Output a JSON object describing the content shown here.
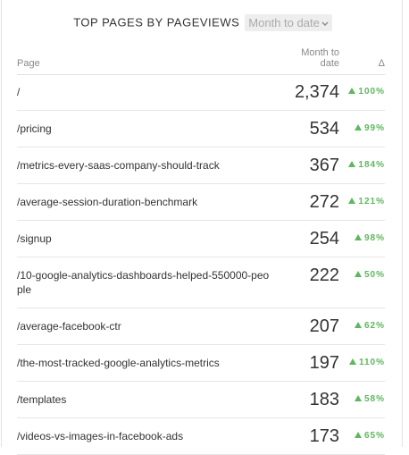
{
  "header": {
    "title": "TOP PAGES BY PAGEVIEWS",
    "period": "Month to date"
  },
  "table": {
    "columns": [
      "Page",
      "Month to date",
      "Δ"
    ],
    "rows": [
      [
        "/",
        "2,374",
        "100%"
      ],
      [
        "/pricing",
        "534",
        "99%"
      ],
      [
        "/metrics-every-saas-company-should-track",
        "367",
        "184%"
      ],
      [
        "/average-session-duration-benchmark",
        "272",
        "121%"
      ],
      [
        "/signup",
        "254",
        "98%"
      ],
      [
        "/10-google-analytics-dashboards-helped-550000-people",
        "222",
        "50%"
      ],
      [
        "/average-facebook-ctr",
        "207",
        "62%"
      ],
      [
        "/the-most-tracked-google-analytics-metrics",
        "197",
        "110%"
      ],
      [
        "/templates",
        "183",
        "58%"
      ],
      [
        "/videos-vs-images-in-facebook-ads",
        "173",
        "65%"
      ]
    ]
  }
}
